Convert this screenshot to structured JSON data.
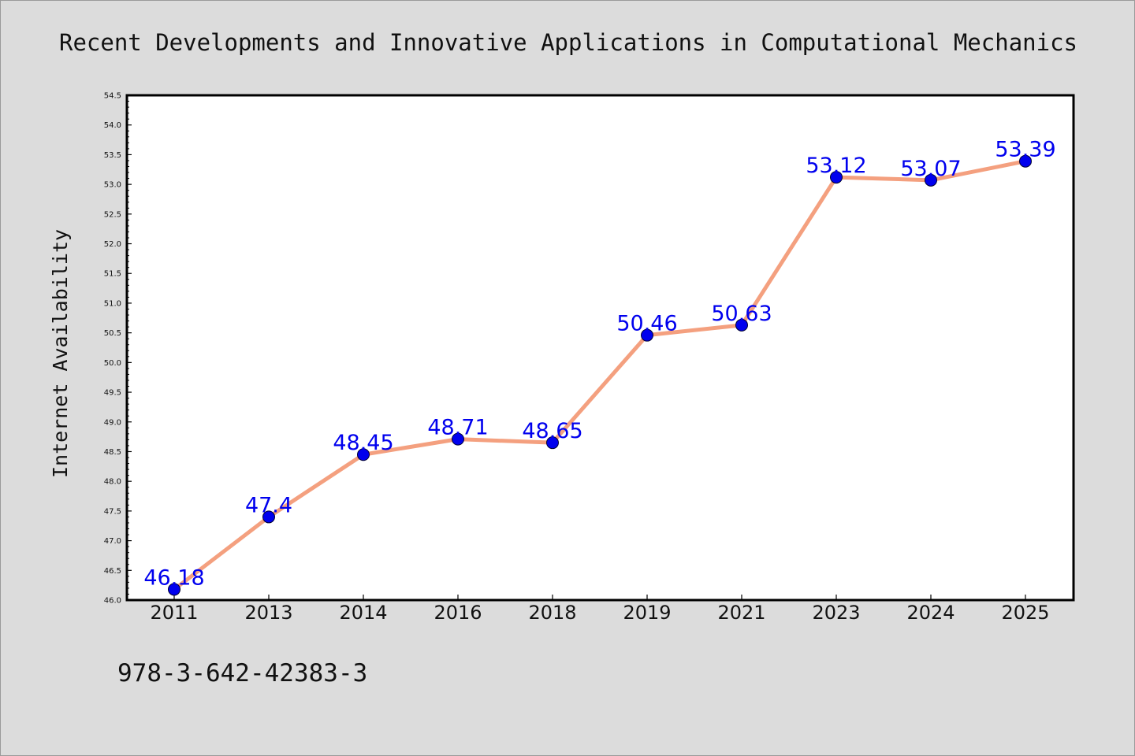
{
  "chart_data": {
    "type": "line",
    "title": "Recent Developments and Innovative Applications in Computational Mechanics",
    "xlabel": "",
    "ylabel": "Internet Availability",
    "categories": [
      "2011",
      "2013",
      "2014",
      "2016",
      "2018",
      "2019",
      "2021",
      "2023",
      "2024",
      "2025"
    ],
    "series": [
      {
        "values": [
          46.18,
          47.4,
          48.45,
          48.71,
          48.65,
          50.46,
          50.63,
          53.12,
          53.07,
          53.39
        ],
        "data_labels": [
          "46.18",
          "47.4",
          "48.45",
          "48.71",
          "48.65",
          "50.46",
          "50.63",
          "53.12",
          "53.07",
          "53.39"
        ]
      }
    ],
    "ylim": [
      46.0,
      54.5
    ],
    "yticks": [
      "46.0",
      "46.5",
      "47.0",
      "47.5",
      "48.0",
      "48.5",
      "49.0",
      "49.5",
      "50.0",
      "50.5",
      "51.0",
      "51.5",
      "52.0",
      "52.5",
      "53.0",
      "53.5",
      "54.0",
      "54.5"
    ],
    "grid": false,
    "legend": "none",
    "colors": {
      "line": "#f4a07f",
      "marker": "#0000ee",
      "data_label": "#0000ee",
      "plot_background": "#ffffff",
      "page_background": "#dcdcdc"
    }
  },
  "footer": {
    "isbn": "978-3-642-42383-3"
  }
}
